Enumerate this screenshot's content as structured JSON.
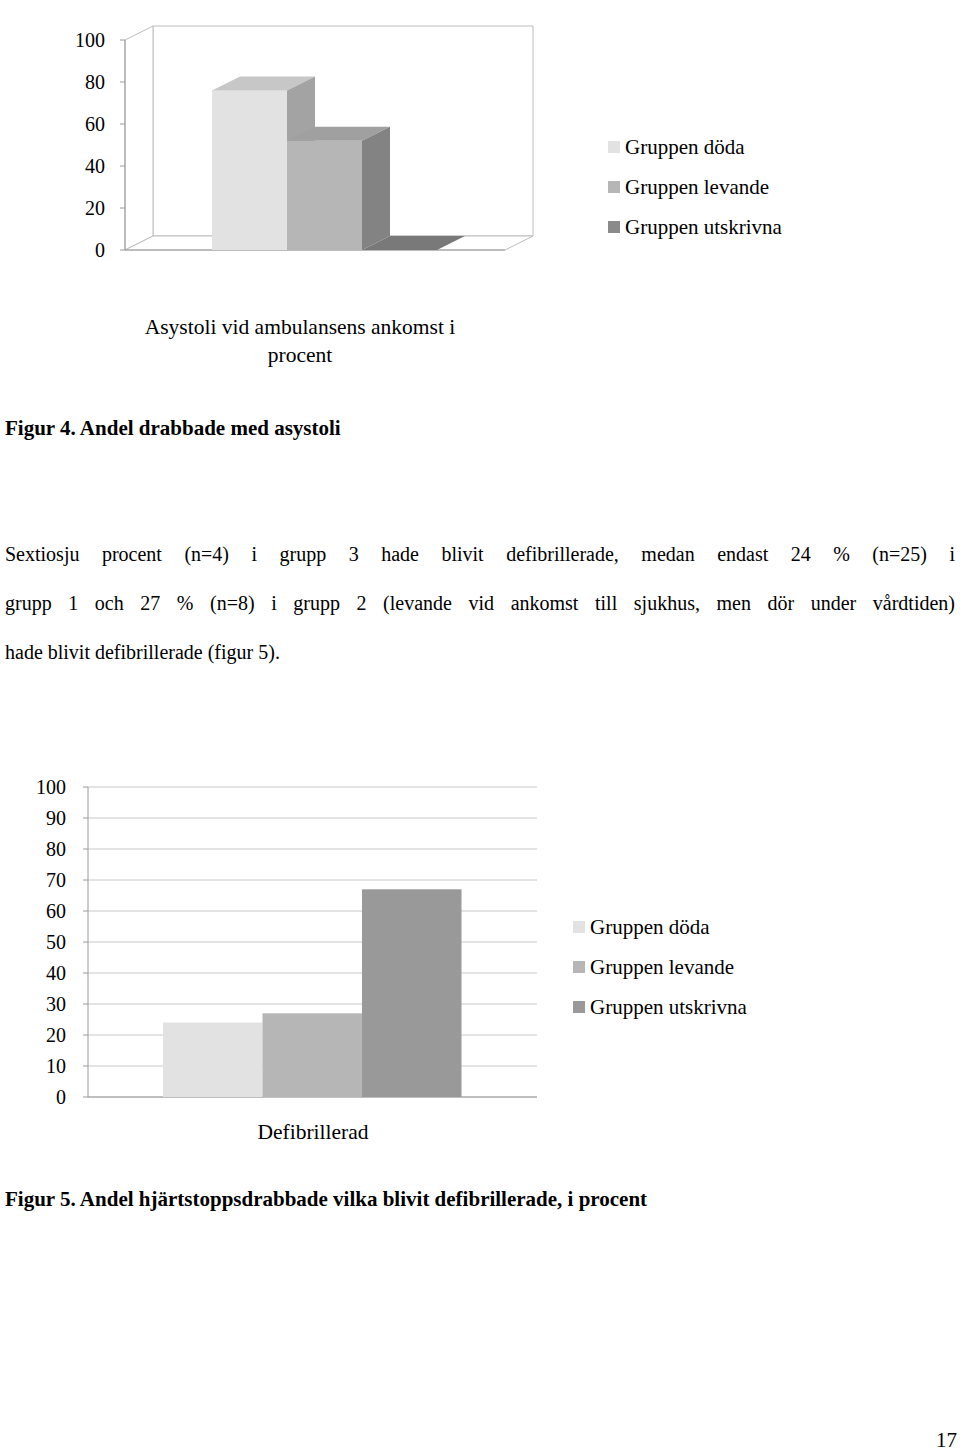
{
  "chart_data": [
    {
      "type": "bar3d",
      "categories": [
        "Asystoli vid ambulansens ankomst i procent"
      ],
      "series": [
        {
          "name": "Gruppen döda",
          "color": "#e2e2e2",
          "values": [
            76
          ]
        },
        {
          "name": "Gruppen levande",
          "color": "#b6b6b6",
          "values": [
            52
          ]
        },
        {
          "name": "Gruppen utskrivna",
          "color": "#8a8a8a",
          "values": [
            0
          ]
        }
      ],
      "ylim": [
        0,
        100
      ],
      "yticks": [
        0,
        20,
        40,
        60,
        80,
        100
      ],
      "grid": false,
      "legend": "right"
    },
    {
      "type": "bar",
      "categories": [
        "Defibrillerad"
      ],
      "series": [
        {
          "name": "Gruppen döda",
          "color": "#e2e2e2",
          "values": [
            24
          ]
        },
        {
          "name": "Gruppen levande",
          "color": "#b6b6b6",
          "values": [
            27
          ]
        },
        {
          "name": "Gruppen utskrivna",
          "color": "#999999",
          "values": [
            67
          ]
        }
      ],
      "ylim": [
        0,
        100
      ],
      "yticks": [
        0,
        10,
        20,
        30,
        40,
        50,
        60,
        70,
        80,
        90,
        100
      ],
      "grid": true,
      "legend": "right"
    }
  ],
  "captions": [
    "Figur 4. Andel drabbade med asystoli",
    "Figur 5. Andel hjärtstoppsdrabbade vilka blivit defibrillerade, i procent"
  ],
  "paragraph": [
    "Sextiosju procent (n=4) i grupp 3 hade blivit defibrillerade, medan endast 24 % (n=25) i",
    "grupp 1 och 27 % (n=8) i grupp 2 (levande vid ankomst till sjukhus, men dör under vårdtiden)",
    "hade blivit defibrillerade (figur 5)."
  ],
  "page_number": "17"
}
